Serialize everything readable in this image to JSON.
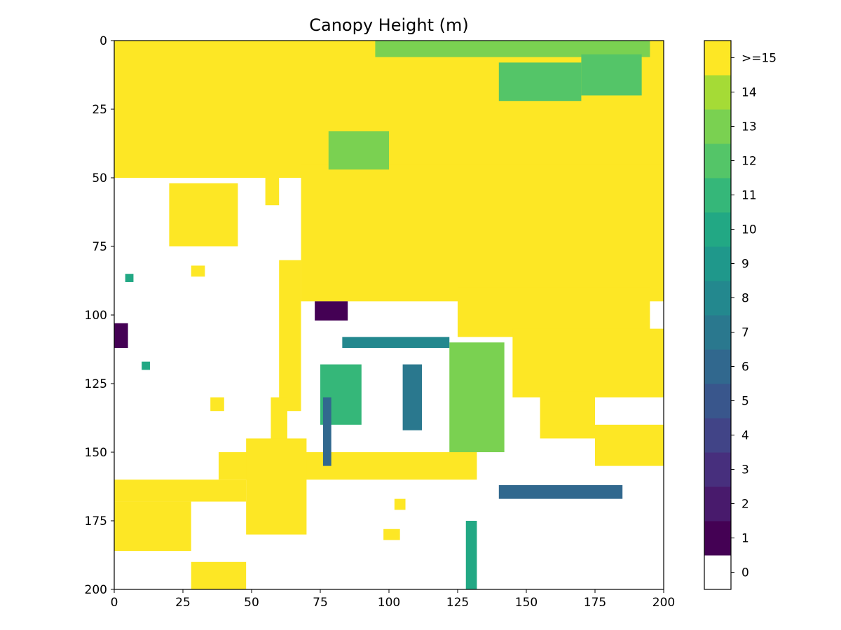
{
  "chart_data": {
    "type": "heatmap",
    "title": "Canopy Height (m)",
    "xlabel": "",
    "ylabel": "",
    "xlim": [
      0,
      200
    ],
    "ylim": [
      200,
      0
    ],
    "x_ticks": [
      0,
      25,
      50,
      75,
      100,
      125,
      150,
      175,
      200
    ],
    "y_ticks": [
      0,
      25,
      50,
      75,
      100,
      125,
      150,
      175,
      200
    ],
    "x_tick_labels": [
      "0",
      "25",
      "50",
      "75",
      "100",
      "125",
      "150",
      "175",
      "200"
    ],
    "y_tick_labels": [
      "0",
      "25",
      "50",
      "75",
      "100",
      "125",
      "150",
      "175",
      "200"
    ],
    "grid": false,
    "legend": "colorbar-right",
    "colorbar": {
      "labels": [
        "0",
        "1",
        "2",
        "3",
        "4",
        "5",
        "6",
        "7",
        "8",
        "9",
        "10",
        "11",
        "12",
        "13",
        "14",
        ">=15"
      ],
      "colors": [
        "#ffffff",
        "#440154",
        "#481a6c",
        "#472f7d",
        "#414487",
        "#39568c",
        "#31688e",
        "#2a788e",
        "#23888e",
        "#1f988b",
        "#22a884",
        "#35b779",
        "#54c568",
        "#7ad151",
        "#a5db36",
        "#fde725"
      ]
    },
    "regions": [
      {
        "label": ">=15",
        "shape": "rect",
        "x": [
          0,
          200
        ],
        "y": [
          0,
          50
        ]
      },
      {
        "label": ">=15",
        "shape": "rect",
        "x": [
          68,
          200
        ],
        "y": [
          45,
          95
        ]
      },
      {
        "label": ">=15",
        "shape": "rect",
        "x": [
          125,
          195
        ],
        "y": [
          90,
          108
        ]
      },
      {
        "label": "13",
        "shape": "rect",
        "x": [
          95,
          195
        ],
        "y": [
          0,
          6
        ]
      },
      {
        "label": "12",
        "shape": "rect",
        "x": [
          170,
          192
        ],
        "y": [
          5,
          20
        ]
      },
      {
        "label": "12",
        "shape": "rect",
        "x": [
          140,
          170
        ],
        "y": [
          8,
          22
        ]
      },
      {
        "label": "13",
        "shape": "rect",
        "x": [
          78,
          100
        ],
        "y": [
          33,
          47
        ]
      },
      {
        "label": ">=15",
        "shape": "rect",
        "x": [
          20,
          45
        ],
        "y": [
          52,
          75
        ]
      },
      {
        "label": ">=15",
        "shape": "rect",
        "x": [
          55,
          60
        ],
        "y": [
          50,
          60
        ]
      },
      {
        "label": ">=15",
        "shape": "rect",
        "x": [
          60,
          68
        ],
        "y": [
          80,
          135
        ]
      },
      {
        "label": ">=15",
        "shape": "rect",
        "x": [
          57,
          63
        ],
        "y": [
          130,
          148
        ]
      },
      {
        "label": ">=15",
        "shape": "rect",
        "x": [
          38,
          132
        ],
        "y": [
          150,
          160
        ]
      },
      {
        "label": ">=15",
        "shape": "rect",
        "x": [
          48,
          70
        ],
        "y": [
          145,
          180
        ]
      },
      {
        "label": ">=15",
        "shape": "rect",
        "x": [
          0,
          48
        ],
        "y": [
          160,
          168
        ]
      },
      {
        "label": ">=15",
        "shape": "rect",
        "x": [
          0,
          28
        ],
        "y": [
          168,
          186
        ]
      },
      {
        "label": ">=15",
        "shape": "rect",
        "x": [
          28,
          48
        ],
        "y": [
          190,
          200
        ]
      },
      {
        "label": "13",
        "shape": "rect",
        "x": [
          122,
          142
        ],
        "y": [
          110,
          150
        ]
      },
      {
        "label": "11",
        "shape": "rect",
        "x": [
          75,
          90
        ],
        "y": [
          118,
          140
        ]
      },
      {
        "label": "6",
        "shape": "rect",
        "x": [
          76,
          79
        ],
        "y": [
          130,
          155
        ]
      },
      {
        "label": "8",
        "shape": "rect",
        "x": [
          83,
          122
        ],
        "y": [
          108,
          112
        ]
      },
      {
        "label": "7",
        "shape": "rect",
        "x": [
          105,
          112
        ],
        "y": [
          118,
          142
        ]
      },
      {
        "label": "6",
        "shape": "rect",
        "x": [
          140,
          185
        ],
        "y": [
          162,
          167
        ]
      },
      {
        "label": "10",
        "shape": "rect",
        "x": [
          128,
          132
        ],
        "y": [
          175,
          200
        ]
      },
      {
        "label": ">=15",
        "shape": "rect",
        "x": [
          145,
          200
        ],
        "y": [
          105,
          130
        ]
      },
      {
        "label": ">=15",
        "shape": "rect",
        "x": [
          175,
          200
        ],
        "y": [
          140,
          155
        ]
      },
      {
        "label": ">=15",
        "shape": "rect",
        "x": [
          155,
          175
        ],
        "y": [
          128,
          145
        ]
      },
      {
        "label": "1",
        "shape": "rect",
        "x": [
          73,
          85
        ],
        "y": [
          95,
          102
        ]
      },
      {
        "label": "1",
        "shape": "rect",
        "x": [
          0,
          5
        ],
        "y": [
          103,
          112
        ]
      },
      {
        "label": ">=15",
        "shape": "rect",
        "x": [
          98,
          104
        ],
        "y": [
          178,
          182
        ]
      },
      {
        "label": ">=15",
        "shape": "rect",
        "x": [
          102,
          106
        ],
        "y": [
          167,
          171
        ]
      },
      {
        "label": ">=15",
        "shape": "rect",
        "x": [
          35,
          40
        ],
        "y": [
          130,
          135
        ]
      },
      {
        "label": ">=15",
        "shape": "rect",
        "x": [
          28,
          33
        ],
        "y": [
          82,
          86
        ]
      },
      {
        "label": "10",
        "shape": "rect",
        "x": [
          4,
          7
        ],
        "y": [
          85,
          88
        ]
      },
      {
        "label": "10",
        "shape": "rect",
        "x": [
          10,
          13
        ],
        "y": [
          117,
          120
        ]
      }
    ]
  }
}
